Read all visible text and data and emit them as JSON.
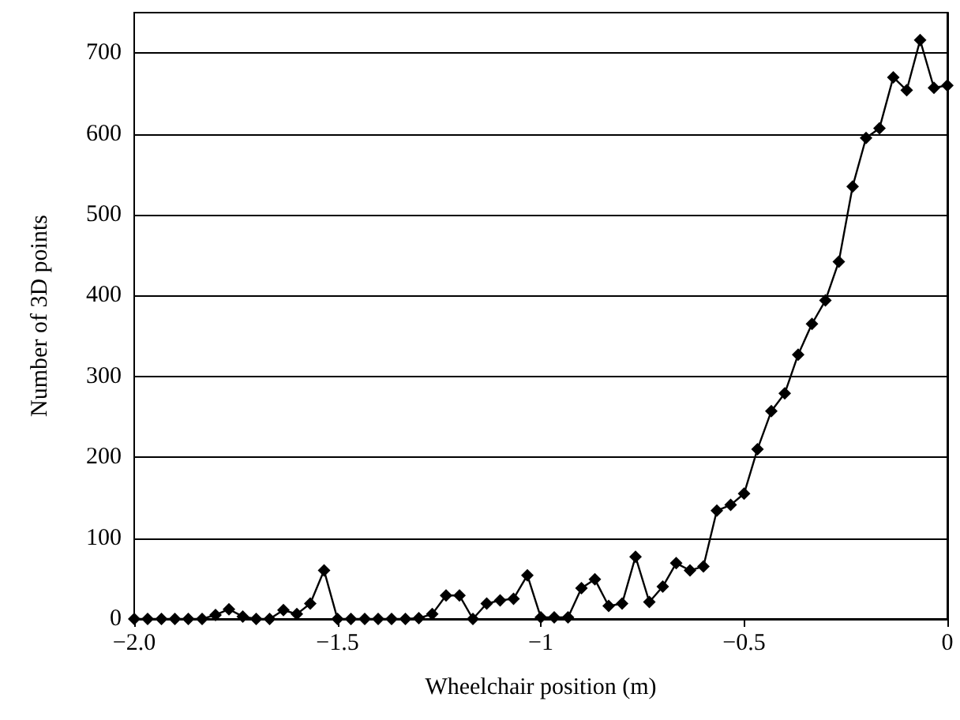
{
  "chart_data": {
    "type": "line",
    "xlabel": "Wheelchair position (m)",
    "ylabel": "Number of 3D points",
    "x": [
      -2,
      -1.967,
      -1.933,
      -1.9,
      -1.867,
      -1.833,
      -1.8,
      -1.767,
      -1.733,
      -1.7,
      -1.667,
      -1.633,
      -1.6,
      -1.567,
      -1.533,
      -1.5,
      -1.467,
      -1.433,
      -1.4,
      -1.367,
      -1.333,
      -1.3,
      -1.267,
      -1.233,
      -1.2,
      -1.167,
      -1.133,
      -1.1,
      -1.067,
      -1.033,
      -1,
      -0.967,
      -0.933,
      -0.9,
      -0.867,
      -0.833,
      -0.8,
      -0.767,
      -0.733,
      -0.7,
      -0.667,
      -0.633,
      -0.6,
      -0.567,
      -0.533,
      -0.5,
      -0.467,
      -0.433,
      -0.4,
      -0.367,
      -0.333,
      -0.3,
      -0.267,
      -0.233,
      -0.2,
      -0.167,
      -0.133,
      -0.1,
      -0.067,
      -0.033,
      0
    ],
    "series": [
      {
        "color": "#000000",
        "values": [
          0,
          0,
          0,
          0,
          0,
          0,
          5,
          12,
          3,
          0,
          0,
          11,
          6,
          19,
          60,
          0,
          0,
          0,
          0,
          0,
          0,
          1,
          6,
          29,
          29,
          0,
          19,
          23,
          25,
          54,
          2,
          2,
          2,
          38,
          49,
          16,
          19,
          77,
          21,
          40,
          69,
          60,
          65,
          134,
          141,
          155,
          210,
          257,
          279,
          327,
          365,
          394,
          442,
          535,
          595,
          607,
          670,
          654,
          716,
          657,
          660
        ]
      }
    ],
    "xlim": [
      -2,
      0
    ],
    "xticks": [
      {
        "value": -2,
        "label": "−2.0"
      },
      {
        "value": -1.5,
        "label": "−1.5"
      },
      {
        "value": -1,
        "label": "−1"
      },
      {
        "value": -0.5,
        "label": "−0.5"
      },
      0
    ],
    "ylim": [
      0,
      750
    ],
    "yticks": [
      0,
      100,
      200,
      300,
      400,
      500,
      600,
      700
    ],
    "grid": "y",
    "marker": "diamond",
    "line_style": "solid"
  }
}
